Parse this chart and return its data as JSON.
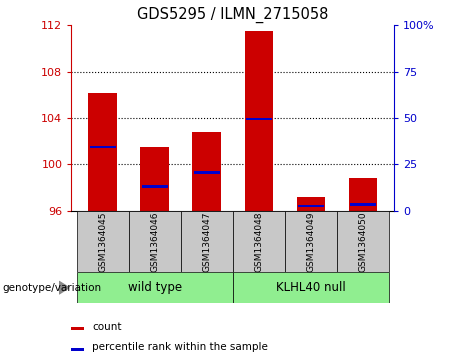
{
  "title": "GDS5295 / ILMN_2715058",
  "samples": [
    "GSM1364045",
    "GSM1364046",
    "GSM1364047",
    "GSM1364048",
    "GSM1364049",
    "GSM1364050"
  ],
  "group_info": [
    {
      "indices": [
        0,
        1,
        2
      ],
      "label": "wild type"
    },
    {
      "indices": [
        3,
        4,
        5
      ],
      "label": "KLHL40 null"
    }
  ],
  "bar_bottoms": [
    96,
    96,
    96,
    96,
    96,
    96
  ],
  "bar_tops": [
    106.2,
    101.5,
    102.8,
    111.5,
    97.2,
    98.8
  ],
  "percentile_values": [
    101.5,
    98.1,
    99.3,
    103.9,
    96.4,
    96.5
  ],
  "ylim_left": [
    96,
    112
  ],
  "ylim_right": [
    0,
    100
  ],
  "yticks_left": [
    96,
    100,
    104,
    108,
    112
  ],
  "yticks_right": [
    0,
    25,
    50,
    75,
    100
  ],
  "yticklabels_right": [
    "0",
    "25",
    "50",
    "75",
    "100%"
  ],
  "bar_color": "#cc0000",
  "percentile_color": "#0000cc",
  "sample_box_color": "#c8c8c8",
  "group_box_color": "#90ee90",
  "legend_items": [
    "count",
    "percentile rank within the sample"
  ],
  "genotype_label": "genotype/variation",
  "left_tick_color": "#cc0000",
  "right_tick_color": "#0000cc",
  "grid_yticks": [
    100,
    104,
    108
  ]
}
